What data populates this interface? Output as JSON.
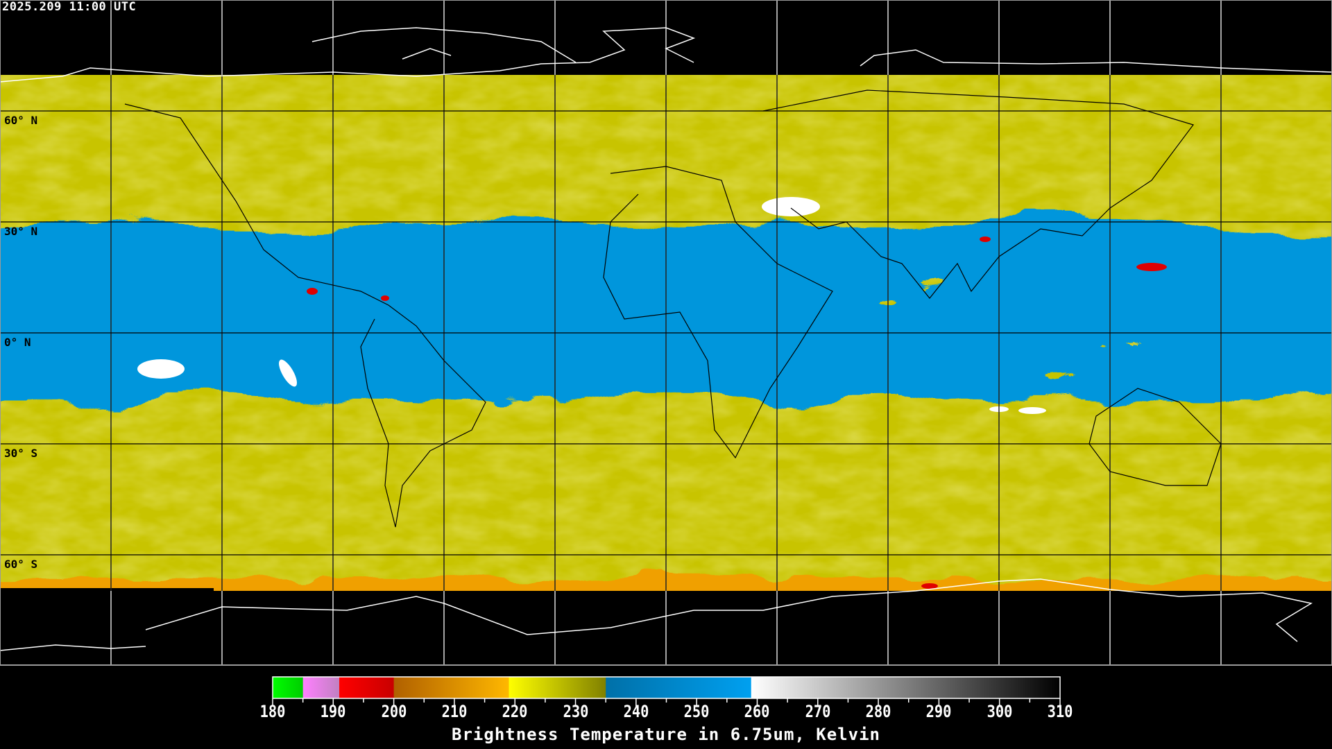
{
  "timestamp": "2025.209 11:00 UTC",
  "latitude_labels": [
    "60° N",
    "30° N",
    "0° N",
    "30° S",
    "60° S"
  ],
  "colorbar": {
    "title": "Brightness Temperature in 6.75um, Kelvin",
    "range": [
      180,
      310
    ],
    "ticks": [
      "180",
      "190",
      "200",
      "210",
      "220",
      "230",
      "240",
      "250",
      "260",
      "270",
      "280",
      "290",
      "300",
      "310"
    ],
    "segments": [
      {
        "from": 180,
        "to": 185,
        "colors": [
          "#00ff00",
          "#00cc00"
        ]
      },
      {
        "from": 185,
        "to": 191,
        "colors": [
          "#ff80ff",
          "#c080c0"
        ]
      },
      {
        "from": 191,
        "to": 200,
        "colors": [
          "#ff0000",
          "#c80000"
        ]
      },
      {
        "from": 200,
        "to": 219,
        "colors": [
          "#b06000",
          "#ffb800"
        ]
      },
      {
        "from": 219,
        "to": 235,
        "colors": [
          "#ffff00",
          "#808000"
        ]
      },
      {
        "from": 235,
        "to": 259,
        "colors": [
          "#0070a8",
          "#00a0f0"
        ]
      },
      {
        "from": 259,
        "to": 310,
        "colors": [
          "#ffffff",
          "#000000"
        ]
      }
    ]
  },
  "map_colors": {
    "cold_cloud": "#d6d400",
    "moist_blue": "#0096dc",
    "very_cold": "#f0a000",
    "coldest": "#e00000",
    "warm_dry": "#ffffff",
    "space": "#000000"
  }
}
